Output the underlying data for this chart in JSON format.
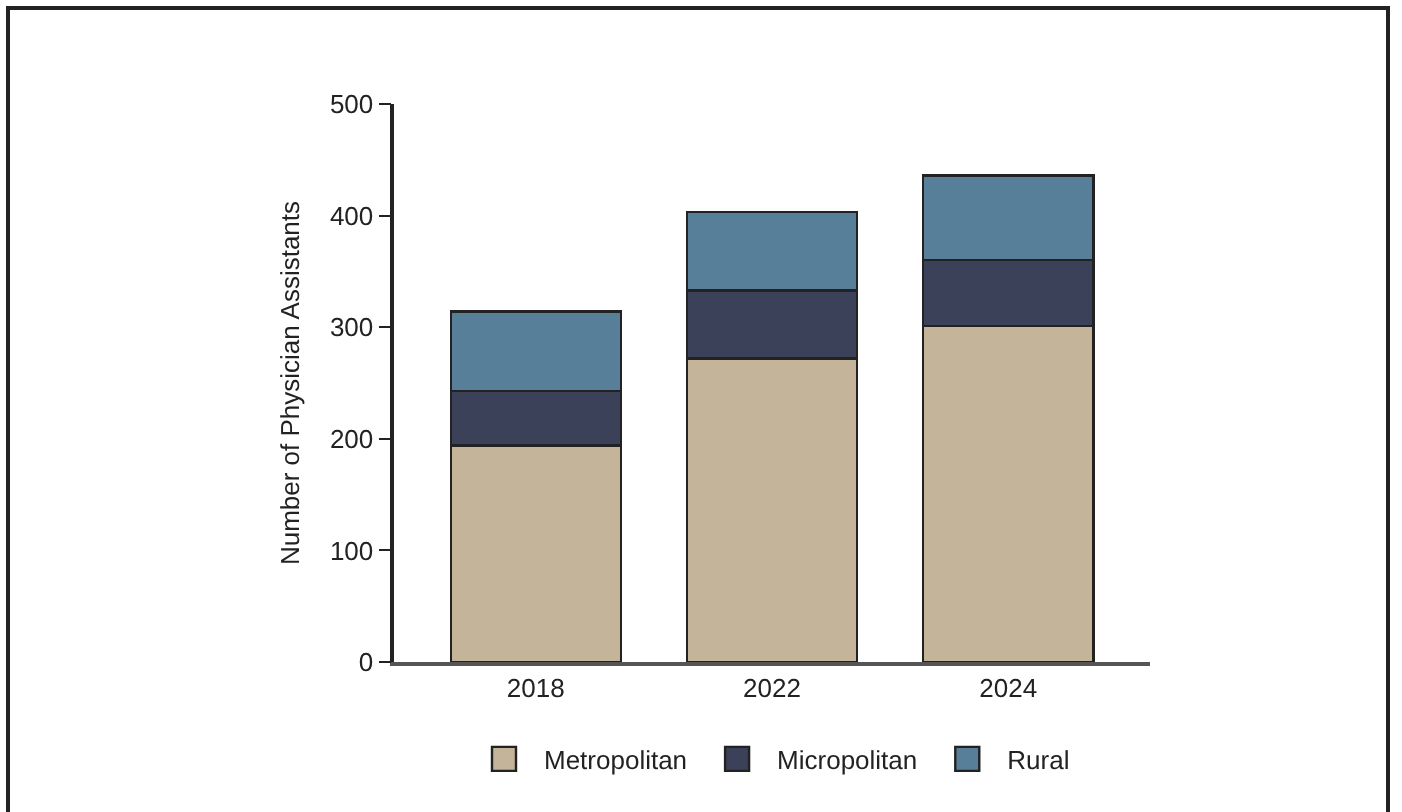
{
  "chart_data": {
    "type": "bar",
    "stacked": true,
    "ylabel": "Number of Physician Assistants",
    "categories": [
      "2018",
      "2022",
      "2024"
    ],
    "series": [
      {
        "name": "Metropolitan",
        "color": "#c4b49a",
        "values": [
          194,
          272,
          301
        ]
      },
      {
        "name": "Micropolitan",
        "color": "#3a4159",
        "values": [
          49,
          61,
          59
        ]
      },
      {
        "name": "Rural",
        "color": "#577f99",
        "values": [
          71,
          70,
          76
        ]
      }
    ],
    "ylim": [
      0,
      500
    ],
    "yticks": [
      0,
      100,
      200,
      300,
      400,
      500
    ],
    "grid": false,
    "legend": "bottom"
  }
}
